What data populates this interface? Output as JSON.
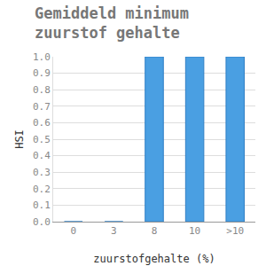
{
  "chart_data": {
    "type": "bar",
    "title": "Gemiddeld minimum zuurstof gehalte",
    "x_label": "zuurstofgehalte (%)",
    "y_label": "HSI",
    "categories": [
      "0",
      "3",
      "8",
      "10",
      ">10"
    ],
    "values": [
      0,
      0,
      1,
      1,
      1
    ],
    "color": "#4a9fe2",
    "ylim": [
      0,
      1
    ],
    "yticks": [
      {
        "value": 0,
        "label": "0.0"
      },
      {
        "value": 0.1,
        "label": "0.1"
      },
      {
        "value": 0.2,
        "label": "0.2"
      },
      {
        "value": 0.3,
        "label": "0.3"
      },
      {
        "value": 0.4,
        "label": "0.4"
      },
      {
        "value": 0.5,
        "label": "0.5"
      },
      {
        "value": 0.6,
        "label": "0.6"
      },
      {
        "value": 0.7,
        "label": "0.7"
      },
      {
        "value": 0.8,
        "label": "0.8"
      },
      {
        "value": 0.9,
        "label": "0.9"
      },
      {
        "value": 1,
        "label": "1.0"
      }
    ],
    "grid": true
  }
}
